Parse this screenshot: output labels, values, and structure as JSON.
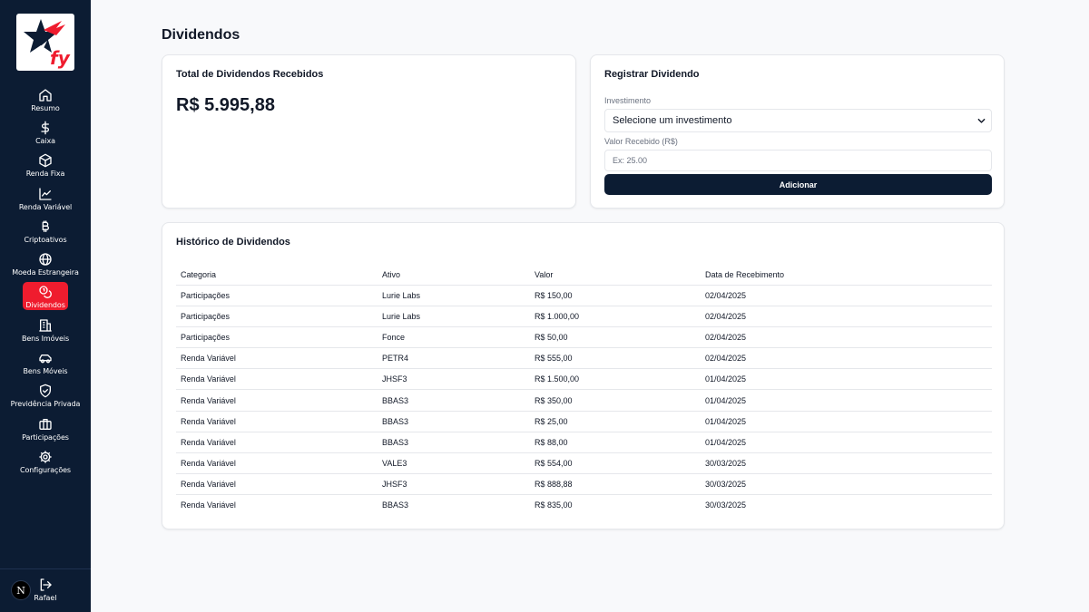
{
  "sidebar": {
    "logo_text": "fy",
    "items": [
      {
        "label": "Resumo",
        "icon": "home-icon"
      },
      {
        "label": "Caixa",
        "icon": "dollar-icon"
      },
      {
        "label": "Renda Fixa",
        "icon": "box-icon"
      },
      {
        "label": "Renda Variável",
        "icon": "line-chart-icon"
      },
      {
        "label": "Criptoativos",
        "icon": "bitcoin-icon"
      },
      {
        "label": "Moeda Estrangeira",
        "icon": "globe-icon"
      },
      {
        "label": "Dividendos",
        "icon": "coins-icon",
        "active": true
      },
      {
        "label": "Bens Imóveis",
        "icon": "building-icon"
      },
      {
        "label": "Bens Móveis",
        "icon": "car-icon"
      },
      {
        "label": "Previdência Privada",
        "icon": "shield-icon"
      },
      {
        "label": "Participações",
        "icon": "briefcase-icon"
      },
      {
        "label": "Configurações",
        "icon": "gear-icon"
      }
    ],
    "user": {
      "avatar_letter": "N",
      "name": "Rafael"
    }
  },
  "page": {
    "title": "Dividendos"
  },
  "total_card": {
    "title": "Total de Dividendos Recebidos",
    "value": "R$ 5.995,88"
  },
  "form_card": {
    "title": "Registrar Dividendo",
    "investment_label": "Investimento",
    "investment_selected": "Selecione um investimento",
    "value_label": "Valor Recebido (R$)",
    "value_placeholder": "Ex: 25.00",
    "submit_label": "Adicionar"
  },
  "history": {
    "title": "Histórico de Dividendos",
    "columns": [
      "Categoria",
      "Ativo",
      "Valor",
      "Data de Recebimento"
    ],
    "rows": [
      [
        "Participações",
        "Lurie Labs",
        "R$ 150,00",
        "02/04/2025"
      ],
      [
        "Participações",
        "Lurie Labs",
        "R$ 1.000,00",
        "02/04/2025"
      ],
      [
        "Participações",
        "Fonce",
        "R$ 50,00",
        "02/04/2025"
      ],
      [
        "Renda Variável",
        "PETR4",
        "R$ 555,00",
        "02/04/2025"
      ],
      [
        "Renda Variável",
        "JHSF3",
        "R$ 1.500,00",
        "01/04/2025"
      ],
      [
        "Renda Variável",
        "BBAS3",
        "R$ 350,00",
        "01/04/2025"
      ],
      [
        "Renda Variável",
        "BBAS3",
        "R$ 25,00",
        "01/04/2025"
      ],
      [
        "Renda Variável",
        "BBAS3",
        "R$ 88,00",
        "01/04/2025"
      ],
      [
        "Renda Variável",
        "VALE3",
        "R$ 554,00",
        "30/03/2025"
      ],
      [
        "Renda Variável",
        "JHSF3",
        "R$ 888,88",
        "30/03/2025"
      ],
      [
        "Renda Variável",
        "BBAS3",
        "R$ 835,00",
        "30/03/2025"
      ]
    ]
  },
  "colors": {
    "sidebar_bg": "#0c1c33",
    "accent": "#ef1c2e",
    "button_bg": "#0c1c33",
    "page_bg": "#f8f9fb"
  }
}
